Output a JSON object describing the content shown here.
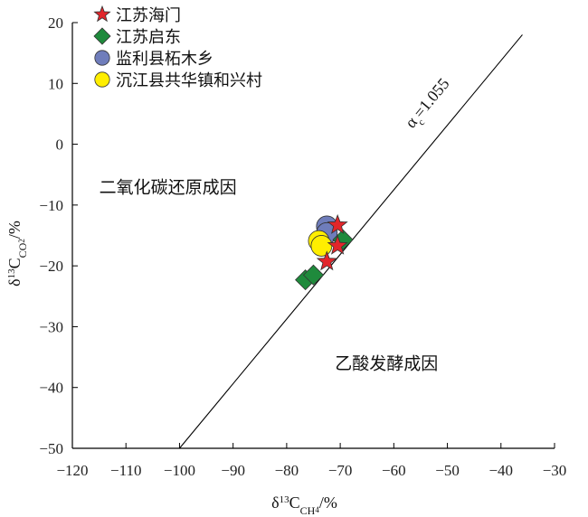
{
  "chart_data": {
    "type": "scatter",
    "xlabel_main": "δ",
    "xlabel_sup": "13",
    "xlabel_C": "C",
    "xlabel_sub": "CH",
    "xlabel_subsub": "4",
    "xlabel_unit": "/%",
    "ylabel_main": "δ",
    "ylabel_sup": "13",
    "ylabel_C": "C",
    "ylabel_sub": "CO",
    "ylabel_subsub": "2",
    "ylabel_unit": "/%",
    "xlim": [
      -120,
      -30
    ],
    "ylim": [
      -50,
      20
    ],
    "xticks": [
      -120,
      -110,
      -100,
      -90,
      -80,
      -70,
      -60,
      -50,
      -40,
      -30
    ],
    "yticks": [
      -50,
      -40,
      -30,
      -20,
      -10,
      0,
      10,
      20
    ],
    "xtick_labels": [
      "−120",
      "−110",
      "−100",
      "−90",
      "−80",
      "−70",
      "−60",
      "−50",
      "−40",
      "−30"
    ],
    "ytick_labels": [
      "−50",
      "−40",
      "−30",
      "−20",
      "−10",
      "0",
      "10",
      "20"
    ],
    "grid": false,
    "legend_position": "top-left",
    "series": [
      {
        "name": "江苏海门",
        "marker": "star",
        "color": "#e2262b",
        "points": [
          [
            -72.5,
            -19.3
          ],
          [
            -70.5,
            -16.7
          ],
          [
            -70.5,
            -13.3
          ]
        ]
      },
      {
        "name": "江苏启东",
        "marker": "diamond",
        "color": "#1f8a3c",
        "points": [
          [
            -76.5,
            -22.3
          ],
          [
            -75.0,
            -21.5
          ],
          [
            -69.5,
            -15.7
          ]
        ]
      },
      {
        "name": "监利县柘木乡",
        "marker": "circle",
        "color": "#6f7dbb",
        "points": [
          [
            -72.5,
            -13.5
          ],
          [
            -72.5,
            -14.6
          ]
        ]
      },
      {
        "name": "沉江县共华镇和兴村",
        "marker": "circle",
        "color": "#ffee00",
        "points": [
          [
            -74.0,
            -15.9
          ],
          [
            -73.5,
            -16.7
          ]
        ]
      }
    ],
    "reference_line": {
      "label_alpha": "α",
      "label_sub": "c",
      "label_value": "=1.055",
      "points": [
        [
          -100,
          -50
        ],
        [
          -36,
          18
        ]
      ]
    },
    "annotations": [
      {
        "text": "二氧化碳还原成因",
        "x": -115,
        "y": -8
      },
      {
        "text": "乙酸发酵成因",
        "x": -71,
        "y": -37
      }
    ]
  }
}
